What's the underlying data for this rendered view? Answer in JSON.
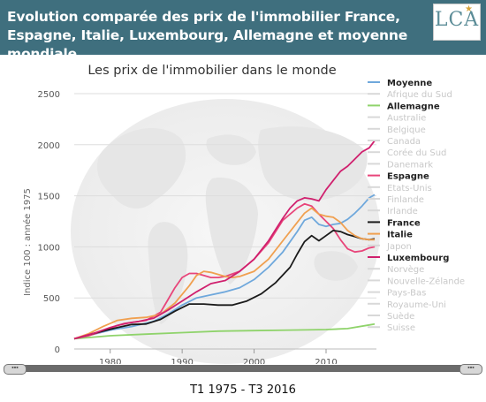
{
  "header": {
    "title": "Evolution comparée des prix de l'immobilier France, Espagne, Italie, Luxembourg, Allemagne et moyenne mondiale",
    "logo": "LCA"
  },
  "period_label": "T1 1975 - T3 2016",
  "chart_data": {
    "type": "line",
    "title": "Les prix de l'immobilier dans le monde",
    "ylabel": "Indice 100 : année 1975",
    "xlim": [
      1975,
      2017
    ],
    "ylim": [
      0,
      2500
    ],
    "xticks": [
      1980,
      1990,
      2000,
      2010
    ],
    "yticks": [
      0,
      500,
      1000,
      1500,
      2000,
      2500
    ],
    "grid": true,
    "legend_position": "right",
    "legend": [
      {
        "name": "Moyenne",
        "active": true,
        "color": "#6fa8dc"
      },
      {
        "name": "Afrique du Sud",
        "active": false
      },
      {
        "name": "Allemagne",
        "active": true,
        "color": "#8fd36b"
      },
      {
        "name": "Australie",
        "active": false
      },
      {
        "name": "Belgique",
        "active": false
      },
      {
        "name": "Canada",
        "active": false
      },
      {
        "name": "Corée du Sud",
        "active": false
      },
      {
        "name": "Danemark",
        "active": false
      },
      {
        "name": "Espagne",
        "active": true,
        "color": "#e8457a"
      },
      {
        "name": "Etats-Unis",
        "active": false
      },
      {
        "name": "Finlande",
        "active": false
      },
      {
        "name": "Irlande",
        "active": false
      },
      {
        "name": "France",
        "active": true,
        "color": "#1b1b1b"
      },
      {
        "name": "Italie",
        "active": true,
        "color": "#f0a050"
      },
      {
        "name": "Japon",
        "active": false
      },
      {
        "name": "Luxembourg",
        "active": true,
        "color": "#d0206e"
      },
      {
        "name": "Norvège",
        "active": false
      },
      {
        "name": "Nouvelle-Zélande",
        "active": false
      },
      {
        "name": "Pays-Bas",
        "active": false
      },
      {
        "name": "Royaume-Uni",
        "active": false
      },
      {
        "name": "Suède",
        "active": false
      },
      {
        "name": "Suisse",
        "active": false
      }
    ],
    "series": [
      {
        "name": "Moyenne",
        "color": "#6fa8dc",
        "points": [
          [
            1975,
            100
          ],
          [
            1978,
            150
          ],
          [
            1980,
            185
          ],
          [
            1983,
            220
          ],
          [
            1986,
            270
          ],
          [
            1988,
            340
          ],
          [
            1990,
            430
          ],
          [
            1992,
            500
          ],
          [
            1994,
            530
          ],
          [
            1996,
            560
          ],
          [
            1998,
            600
          ],
          [
            2000,
            680
          ],
          [
            2002,
            800
          ],
          [
            2004,
            950
          ],
          [
            2006,
            1150
          ],
          [
            2007,
            1260
          ],
          [
            2008,
            1290
          ],
          [
            2009,
            1220
          ],
          [
            2010,
            1200
          ],
          [
            2011,
            1220
          ],
          [
            2012,
            1230
          ],
          [
            2013,
            1270
          ],
          [
            2014,
            1330
          ],
          [
            2015,
            1400
          ],
          [
            2016,
            1480
          ],
          [
            2016.75,
            1510
          ]
        ]
      },
      {
        "name": "Allemagne",
        "color": "#8fd36b",
        "points": [
          [
            1975,
            100
          ],
          [
            1980,
            130
          ],
          [
            1985,
            145
          ],
          [
            1990,
            160
          ],
          [
            1995,
            175
          ],
          [
            2000,
            180
          ],
          [
            2005,
            185
          ],
          [
            2010,
            190
          ],
          [
            2013,
            200
          ],
          [
            2016,
            235
          ],
          [
            2016.75,
            245
          ]
        ]
      },
      {
        "name": "Espagne",
        "color": "#e8457a",
        "points": [
          [
            1975,
            100
          ],
          [
            1977,
            130
          ],
          [
            1979,
            175
          ],
          [
            1981,
            230
          ],
          [
            1983,
            260
          ],
          [
            1985,
            280
          ],
          [
            1987,
            360
          ],
          [
            1988,
            480
          ],
          [
            1989,
            600
          ],
          [
            1990,
            700
          ],
          [
            1991,
            740
          ],
          [
            1992,
            740
          ],
          [
            1993,
            720
          ],
          [
            1994,
            700
          ],
          [
            1995,
            700
          ],
          [
            1996,
            710
          ],
          [
            1998,
            760
          ],
          [
            2000,
            880
          ],
          [
            2002,
            1040
          ],
          [
            2004,
            1260
          ],
          [
            2006,
            1380
          ],
          [
            2007,
            1420
          ],
          [
            2008,
            1400
          ],
          [
            2009,
            1320
          ],
          [
            2010,
            1250
          ],
          [
            2011,
            1180
          ],
          [
            2012,
            1070
          ],
          [
            2013,
            980
          ],
          [
            2014,
            950
          ],
          [
            2015,
            960
          ],
          [
            2016,
            990
          ],
          [
            2016.75,
            1000
          ]
        ]
      },
      {
        "name": "France",
        "color": "#1b1b1b",
        "points": [
          [
            1975,
            100
          ],
          [
            1977,
            140
          ],
          [
            1979,
            175
          ],
          [
            1981,
            210
          ],
          [
            1983,
            240
          ],
          [
            1985,
            245
          ],
          [
            1987,
            290
          ],
          [
            1989,
            370
          ],
          [
            1991,
            440
          ],
          [
            1993,
            440
          ],
          [
            1995,
            430
          ],
          [
            1997,
            430
          ],
          [
            1999,
            470
          ],
          [
            2001,
            540
          ],
          [
            2003,
            650
          ],
          [
            2005,
            800
          ],
          [
            2006,
            930
          ],
          [
            2007,
            1050
          ],
          [
            2008,
            1110
          ],
          [
            2009,
            1060
          ],
          [
            2010,
            1110
          ],
          [
            2011,
            1160
          ],
          [
            2012,
            1150
          ],
          [
            2013,
            1120
          ],
          [
            2014,
            1100
          ],
          [
            2015,
            1080
          ],
          [
            2016,
            1070
          ],
          [
            2016.75,
            1080
          ]
        ]
      },
      {
        "name": "Italie",
        "color": "#f0a050",
        "points": [
          [
            1975,
            100
          ],
          [
            1977,
            150
          ],
          [
            1979,
            220
          ],
          [
            1981,
            280
          ],
          [
            1983,
            300
          ],
          [
            1985,
            310
          ],
          [
            1987,
            340
          ],
          [
            1989,
            450
          ],
          [
            1991,
            620
          ],
          [
            1992,
            720
          ],
          [
            1993,
            760
          ],
          [
            1994,
            750
          ],
          [
            1995,
            730
          ],
          [
            1996,
            710
          ],
          [
            1997,
            700
          ],
          [
            1998,
            710
          ],
          [
            2000,
            760
          ],
          [
            2002,
            880
          ],
          [
            2004,
            1060
          ],
          [
            2006,
            1240
          ],
          [
            2007,
            1330
          ],
          [
            2008,
            1380
          ],
          [
            2009,
            1320
          ],
          [
            2010,
            1300
          ],
          [
            2011,
            1290
          ],
          [
            2012,
            1240
          ],
          [
            2013,
            1160
          ],
          [
            2014,
            1110
          ],
          [
            2015,
            1080
          ],
          [
            2016,
            1070
          ],
          [
            2016.75,
            1070
          ]
        ]
      },
      {
        "name": "Luxembourg",
        "color": "#d0206e",
        "points": [
          [
            1975,
            100
          ],
          [
            1978,
            160
          ],
          [
            1980,
            210
          ],
          [
            1982,
            250
          ],
          [
            1984,
            270
          ],
          [
            1986,
            300
          ],
          [
            1988,
            380
          ],
          [
            1990,
            470
          ],
          [
            1992,
            560
          ],
          [
            1994,
            640
          ],
          [
            1996,
            670
          ],
          [
            1998,
            760
          ],
          [
            2000,
            880
          ],
          [
            2002,
            1060
          ],
          [
            2003,
            1170
          ],
          [
            2004,
            1280
          ],
          [
            2005,
            1380
          ],
          [
            2006,
            1450
          ],
          [
            2007,
            1480
          ],
          [
            2008,
            1470
          ],
          [
            2009,
            1450
          ],
          [
            2010,
            1560
          ],
          [
            2011,
            1650
          ],
          [
            2012,
            1740
          ],
          [
            2013,
            1790
          ],
          [
            2014,
            1860
          ],
          [
            2015,
            1930
          ],
          [
            2016,
            1970
          ],
          [
            2016.75,
            2040
          ]
        ]
      }
    ]
  }
}
